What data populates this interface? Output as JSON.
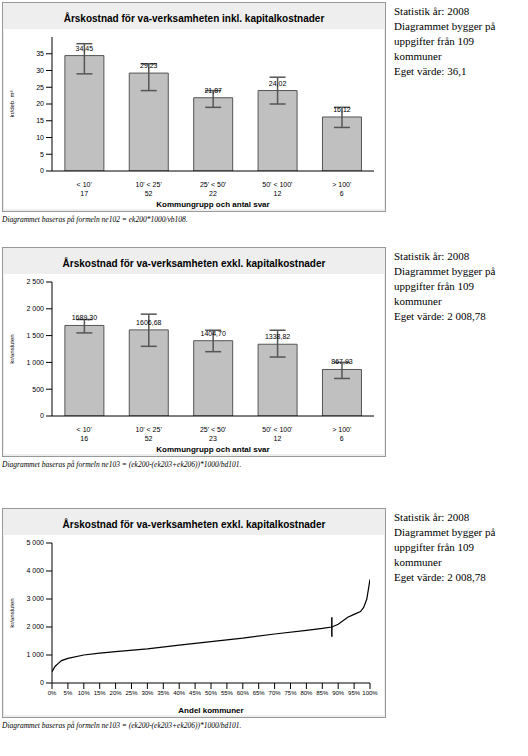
{
  "chart_data": [
    {
      "type": "bar",
      "title": "Årskostnad för va-verksamheten inkl. kapitalkostnader",
      "y_label": "kr/deb. m³",
      "x_label": "Kommungrupp och antal svar",
      "categories": [
        "< 10'",
        "10' < 25'",
        "25' < 50'",
        "50' < 100'",
        "> 100'"
      ],
      "counts": [
        17,
        52,
        22,
        12,
        6
      ],
      "values": [
        34.45,
        29.23,
        21.87,
        24.02,
        16.12
      ],
      "value_labels": [
        "34,45",
        "29,23",
        "21,87",
        "24,02",
        "16,12"
      ],
      "error_bars": [
        [
          29,
          38
        ],
        [
          24,
          32
        ],
        [
          19,
          24
        ],
        [
          20,
          28
        ],
        [
          13,
          19
        ]
      ],
      "color": "#c0c0c0",
      "data_labels": true,
      "grid": false,
      "ylim": [
        0,
        40
      ],
      "yticks": [
        0,
        5,
        10,
        15,
        20,
        25,
        30,
        35
      ],
      "caption": "Diagrammet baseras på formeln ne102 = ek200*1000/vb108.",
      "side_text": [
        "Statistik år: 2008",
        "Diagrammet bygger på uppgifter från 109 kommuner",
        "Eget värde: 36,1"
      ]
    },
    {
      "type": "bar",
      "title": "Årskostnad för va-verksamheten exkl. kapitalkostnader",
      "y_label": "kr/ansluten",
      "x_label": "Kommungrupp och antal svar",
      "categories": [
        "< 10'",
        "10' < 25'",
        "25' < 50'",
        "50' < 100'",
        "> 100'"
      ],
      "counts": [
        16,
        52,
        23,
        12,
        6
      ],
      "values": [
        1689.3,
        1606.68,
        1404.7,
        1338.82,
        867.93
      ],
      "value_labels": [
        "1689,30",
        "1606,68",
        "1404,70",
        "1338,82",
        "867,93"
      ],
      "error_bars": [
        [
          1550,
          1800
        ],
        [
          1300,
          1900
        ],
        [
          1200,
          1600
        ],
        [
          1100,
          1600
        ],
        [
          700,
          1000
        ]
      ],
      "color": "#c0c0c0",
      "data_labels": true,
      "grid": false,
      "ylim": [
        0,
        2500
      ],
      "yticks": [
        0,
        500,
        {
          "value": 1000,
          "label": "1 000"
        },
        {
          "value": 1500,
          "label": "1 500"
        },
        {
          "value": 2000,
          "label": "2 000"
        },
        {
          "value": 2500,
          "label": "2 500"
        }
      ],
      "caption": "Diagrammet baseras på formeln ne103 = (ek200-(ek203+ek206))*1000/bd101.",
      "side_text": [
        "Statistik år: 2008",
        "Diagrammet bygger på uppgifter från 109 kommuner",
        "Eget värde: 2 008,78"
      ]
    },
    {
      "type": "line",
      "title": "Årskostnad för va-verksamheten exkl. kapitalkostnader",
      "y_label": "kr/ansluten",
      "x_label": "Andel kommuner",
      "x": [
        0,
        1,
        2,
        3,
        5,
        10,
        15,
        20,
        30,
        40,
        50,
        60,
        70,
        80,
        85,
        88,
        90,
        93,
        95,
        97,
        98,
        99,
        100
      ],
      "values": [
        400,
        600,
        700,
        800,
        880,
        1000,
        1070,
        1120,
        1220,
        1350,
        1480,
        1600,
        1750,
        1880,
        1950,
        2000,
        2100,
        2350,
        2450,
        2550,
        2700,
        3000,
        3700
      ],
      "color": "#000000",
      "grid": false,
      "own_value_marker": {
        "x": 88,
        "y_range": [
          1650,
          2350
        ]
      },
      "xlim": [
        0,
        100
      ],
      "xticks": [
        {
          "value": 0,
          "label": "0%"
        },
        {
          "value": 5,
          "label": "5%"
        },
        {
          "value": 10,
          "label": "10%"
        },
        {
          "value": 15,
          "label": "15%"
        },
        {
          "value": 20,
          "label": "20%"
        },
        {
          "value": 25,
          "label": "25%"
        },
        {
          "value": 30,
          "label": "30%"
        },
        {
          "value": 35,
          "label": "35%"
        },
        {
          "value": 40,
          "label": "40%"
        },
        {
          "value": 45,
          "label": "45%"
        },
        {
          "value": 50,
          "label": "50%"
        },
        {
          "value": 55,
          "label": "55%"
        },
        {
          "value": 60,
          "label": "60%"
        },
        {
          "value": 65,
          "label": "65%"
        },
        {
          "value": 70,
          "label": "70%"
        },
        {
          "value": 75,
          "label": "75%"
        },
        {
          "value": 80,
          "label": "80%"
        },
        {
          "value": 85,
          "label": "85%"
        },
        {
          "value": 90,
          "label": "90%"
        },
        {
          "value": 95,
          "label": "95%"
        },
        {
          "value": 100,
          "label": "100%"
        }
      ],
      "ylim": [
        0,
        5000
      ],
      "yticks": [
        0,
        {
          "value": 1000,
          "label": "1 000"
        },
        {
          "value": 2000,
          "label": "2 000"
        },
        {
          "value": 3000,
          "label": "3 000"
        },
        {
          "value": 4000,
          "label": "4 000"
        },
        {
          "value": 5000,
          "label": "5 000"
        }
      ],
      "caption": "Diagrammet baseras på formeln ne103 = (ek200-(ek203+ek206))*1000/bd101.",
      "side_text": [
        "Statistik år: 2008",
        "Diagrammet bygger på uppgifter från 109 kommuner",
        "Eget värde: 2 008,78"
      ]
    }
  ]
}
